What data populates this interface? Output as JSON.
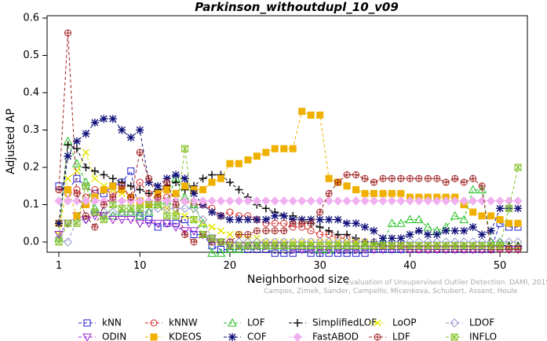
{
  "chart_data": {
    "type": "line",
    "title": "Parkinson_withoutdupl_10_v09",
    "xlabel": "Neighborhood size",
    "ylabel": "Adjusted AP",
    "xlim": [
      1,
      52
    ],
    "ylim": [
      -0.05,
      0.6
    ],
    "xticks": [
      1,
      10,
      20,
      30,
      40,
      50
    ],
    "yticks": [
      0.0,
      0.1,
      0.2,
      0.3,
      0.4,
      0.5,
      0.6
    ],
    "ytick_labels": [
      "0.0",
      "0.1",
      "0.2",
      "0.3",
      "0.4",
      "0.5",
      "0.6"
    ],
    "grid": false,
    "legend_placement": "bottom",
    "credit": "Campos, Zimek, Sander, Campello, Micenkova, Schubert, Assent, Houle",
    "credit_line2": "Evaluation of Unsupervised Outlier Detection. DAMI, 2015.",
    "x": [
      1,
      2,
      3,
      4,
      5,
      6,
      7,
      8,
      9,
      10,
      11,
      12,
      13,
      14,
      15,
      16,
      17,
      18,
      19,
      20,
      21,
      22,
      23,
      24,
      25,
      26,
      27,
      28,
      29,
      30,
      31,
      32,
      33,
      34,
      35,
      36,
      37,
      38,
      39,
      40,
      41,
      42,
      43,
      44,
      45,
      46,
      47,
      48,
      49,
      50,
      51,
      52
    ],
    "series": [
      {
        "name": "kNN",
        "color": "#1f1fd6",
        "marker": "square",
        "values": [
          0.15,
          0.14,
          0.17,
          0.15,
          0.13,
          0.13,
          0.15,
          0.16,
          0.19,
          0.07,
          0.06,
          0.04,
          0.05,
          0.05,
          0.06,
          0.02,
          0.02,
          -0.01,
          -0.02,
          -0.02,
          -0.02,
          -0.02,
          -0.02,
          -0.02,
          -0.03,
          -0.03,
          -0.03,
          -0.02,
          -0.03,
          -0.03,
          -0.03,
          -0.03,
          -0.03,
          -0.03,
          -0.03,
          -0.02,
          -0.02,
          -0.02,
          -0.02,
          -0.02,
          -0.02,
          -0.02,
          -0.02,
          -0.02,
          -0.02,
          -0.02,
          -0.02,
          -0.02,
          -0.02,
          0.05,
          0.04,
          0.04
        ]
      },
      {
        "name": "kNNW",
        "color": "#d62020",
        "marker": "circle",
        "values": [
          0.14,
          0.13,
          0.14,
          0.12,
          0.14,
          0.14,
          0.13,
          0.14,
          0.12,
          0.16,
          0.13,
          0.11,
          0.12,
          0.13,
          0.11,
          0.1,
          0.1,
          0.09,
          0.07,
          0.08,
          0.07,
          0.07,
          0.06,
          0.05,
          0.05,
          0.05,
          0.04,
          0.04,
          0.03,
          0.02,
          0.02,
          0.01,
          0.01,
          0.0,
          0.0,
          0.0,
          -0.01,
          -0.01,
          -0.01,
          -0.02,
          -0.02,
          -0.02,
          -0.02,
          -0.02,
          -0.02,
          -0.02,
          -0.02,
          -0.02,
          -0.02,
          -0.02,
          -0.02,
          -0.02
        ]
      },
      {
        "name": "LOF",
        "color": "#20c020",
        "marker": "triangle-up",
        "values": [
          0.01,
          0.27,
          0.21,
          0.16,
          0.09,
          0.07,
          0.07,
          0.08,
          0.08,
          0.07,
          0.08,
          0.1,
          0.11,
          0.17,
          0.12,
          0.1,
          0.05,
          -0.03,
          -0.03,
          -0.02,
          -0.02,
          -0.01,
          -0.01,
          -0.01,
          -0.01,
          -0.01,
          -0.01,
          -0.01,
          -0.01,
          -0.02,
          -0.02,
          -0.01,
          -0.01,
          -0.01,
          -0.01,
          -0.01,
          0.0,
          0.05,
          0.05,
          0.06,
          0.06,
          0.04,
          0.03,
          0.04,
          0.07,
          0.06,
          0.14,
          0.14,
          0.0,
          0.0,
          -0.01,
          -0.01
        ]
      },
      {
        "name": "SimplifiedLOF",
        "color": "#111111",
        "marker": "plus",
        "values": [
          0.05,
          0.26,
          0.25,
          0.2,
          0.19,
          0.18,
          0.17,
          0.16,
          0.15,
          0.14,
          0.13,
          0.14,
          0.15,
          0.16,
          0.14,
          0.15,
          0.17,
          0.18,
          0.18,
          0.16,
          0.14,
          0.12,
          0.1,
          0.09,
          0.08,
          0.07,
          0.07,
          0.06,
          0.05,
          0.04,
          0.03,
          0.02,
          0.02,
          0.01,
          0.0,
          0.0,
          -0.01,
          -0.01,
          -0.01,
          -0.01,
          -0.01,
          -0.01,
          -0.01,
          -0.01,
          -0.01,
          -0.01,
          -0.01,
          -0.01,
          -0.01,
          -0.01,
          -0.01,
          -0.01
        ]
      },
      {
        "name": "LoOP",
        "color": "#e6e600",
        "marker": "x",
        "values": [
          0.02,
          0.17,
          0.19,
          0.24,
          0.17,
          0.15,
          0.14,
          0.13,
          0.11,
          0.1,
          0.1,
          0.1,
          0.09,
          0.08,
          0.07,
          0.06,
          0.05,
          0.04,
          0.03,
          0.02,
          0.02,
          0.01,
          0.01,
          0.0,
          0.0,
          0.0,
          0.0,
          0.0,
          0.0,
          0.0,
          0.0,
          0.0,
          0.0,
          0.0,
          0.0,
          -0.01,
          -0.01,
          -0.01,
          -0.01,
          -0.01,
          -0.01,
          -0.01,
          -0.01,
          -0.01,
          -0.01,
          -0.01,
          -0.01,
          -0.01,
          -0.01,
          -0.01,
          -0.01,
          -0.01
        ]
      },
      {
        "name": "LDOF",
        "color": "#9999cc",
        "marker": "diamond",
        "values": [
          0.01,
          0.0,
          0.06,
          0.06,
          0.08,
          0.08,
          0.08,
          0.08,
          0.08,
          0.08,
          0.08,
          0.09,
          0.09,
          0.09,
          0.09,
          0.09,
          0.06,
          0.01,
          0.0,
          0.0,
          0.0,
          0.0,
          0.0,
          0.0,
          0.0,
          0.0,
          0.0,
          0.0,
          0.0,
          0.0,
          0.0,
          0.0,
          0.0,
          0.0,
          0.0,
          0.0,
          0.0,
          0.0,
          0.0,
          0.0,
          0.0,
          0.0,
          0.0,
          0.0,
          0.0,
          0.0,
          0.0,
          0.0,
          0.0,
          0.0,
          0.0,
          0.0
        ]
      },
      {
        "name": "ODIN",
        "color": "#9a20d0",
        "marker": "triangle-down",
        "values": [
          0.02,
          0.05,
          0.07,
          0.06,
          0.07,
          0.07,
          0.06,
          0.06,
          0.06,
          0.05,
          0.05,
          0.05,
          0.05,
          0.04,
          0.03,
          0.03,
          0.02,
          0.01,
          0.0,
          -0.01,
          -0.01,
          -0.01,
          -0.01,
          -0.01,
          -0.01,
          -0.01,
          -0.02,
          -0.02,
          -0.02,
          -0.02,
          -0.02,
          -0.02,
          -0.02,
          -0.02,
          -0.02,
          -0.02,
          -0.02,
          -0.02,
          -0.02,
          -0.02,
          -0.02,
          -0.02,
          -0.02,
          -0.02,
          -0.02,
          -0.02,
          -0.02,
          -0.02,
          -0.02,
          -0.02,
          -0.02,
          -0.02
        ]
      },
      {
        "name": "KDEOS",
        "color": "#f0b000",
        "marker": "square-filled",
        "values": [
          0.05,
          0.14,
          0.07,
          0.1,
          0.12,
          0.14,
          0.15,
          0.14,
          0.12,
          0.11,
          0.1,
          0.13,
          0.14,
          0.13,
          0.15,
          0.14,
          0.14,
          0.16,
          0.17,
          0.21,
          0.21,
          0.22,
          0.23,
          0.24,
          0.25,
          0.25,
          0.25,
          0.35,
          0.34,
          0.34,
          0.17,
          0.16,
          0.15,
          0.14,
          0.13,
          0.13,
          0.13,
          0.13,
          0.13,
          0.12,
          0.12,
          0.12,
          0.12,
          0.12,
          0.12,
          0.1,
          0.08,
          0.07,
          0.07,
          0.06,
          0.05,
          0.05
        ]
      },
      {
        "name": "COF",
        "color": "#10107a",
        "marker": "asterisk",
        "values": [
          0.05,
          0.23,
          0.27,
          0.29,
          0.32,
          0.33,
          0.33,
          0.3,
          0.28,
          0.3,
          0.16,
          0.15,
          0.17,
          0.18,
          0.17,
          0.13,
          0.1,
          0.08,
          0.07,
          0.06,
          0.06,
          0.06,
          0.06,
          0.06,
          0.07,
          0.07,
          0.06,
          0.06,
          0.06,
          0.06,
          0.06,
          0.06,
          0.05,
          0.05,
          0.04,
          0.03,
          0.01,
          0.01,
          0.01,
          0.02,
          0.03,
          0.02,
          0.02,
          0.03,
          0.03,
          0.03,
          0.04,
          0.02,
          0.03,
          0.09,
          0.09,
          0.09
        ]
      },
      {
        "name": "FastABOD",
        "color": "#f0b0f0",
        "marker": "diamond-filled",
        "values": [
          0.11,
          0.11,
          0.11,
          0.11,
          0.11,
          0.11,
          0.11,
          0.11,
          0.11,
          0.11,
          0.11,
          0.11,
          0.11,
          0.11,
          0.11,
          0.11,
          0.11,
          0.11,
          0.11,
          0.11,
          0.11,
          0.11,
          0.11,
          0.11,
          0.11,
          0.11,
          0.11,
          0.11,
          0.11,
          0.11,
          0.11,
          0.11,
          0.11,
          0.11,
          0.11,
          0.11,
          0.11,
          0.11,
          0.11,
          0.11,
          0.11,
          0.11,
          0.11,
          0.11,
          0.11,
          0.11,
          0.11,
          0.11,
          0.11,
          0.11,
          0.11,
          0.11
        ]
      },
      {
        "name": "LDF",
        "color": "#a02020",
        "marker": "circle-plus",
        "values": [
          0.14,
          0.56,
          0.13,
          0.07,
          0.04,
          0.1,
          0.12,
          0.15,
          0.12,
          0.24,
          0.17,
          0.12,
          0.16,
          0.1,
          0.02,
          0.0,
          0.02,
          0.0,
          0.0,
          0.0,
          0.02,
          0.02,
          0.03,
          0.03,
          0.03,
          0.03,
          0.05,
          0.05,
          0.05,
          0.08,
          0.13,
          0.16,
          0.18,
          0.18,
          0.17,
          0.16,
          0.17,
          0.17,
          0.17,
          0.17,
          0.17,
          0.17,
          0.17,
          0.16,
          0.17,
          0.16,
          0.17,
          0.15,
          -0.02,
          -0.02,
          -0.02,
          -0.02
        ]
      },
      {
        "name": "INFLO",
        "color": "#80c020",
        "marker": "star-box",
        "values": [
          0.0,
          0.05,
          0.05,
          0.15,
          0.08,
          0.06,
          0.1,
          0.09,
          0.09,
          0.09,
          0.1,
          0.1,
          0.07,
          0.07,
          0.25,
          0.06,
          0.02,
          0.01,
          0.0,
          -0.01,
          -0.01,
          -0.01,
          -0.01,
          -0.01,
          -0.01,
          -0.01,
          -0.01,
          -0.01,
          -0.01,
          -0.01,
          -0.01,
          -0.01,
          -0.01,
          -0.01,
          -0.01,
          -0.01,
          -0.01,
          -0.01,
          -0.01,
          -0.01,
          -0.01,
          -0.01,
          -0.01,
          -0.01,
          -0.01,
          -0.01,
          -0.01,
          -0.01,
          -0.01,
          -0.01,
          0.09,
          0.2
        ]
      }
    ]
  }
}
